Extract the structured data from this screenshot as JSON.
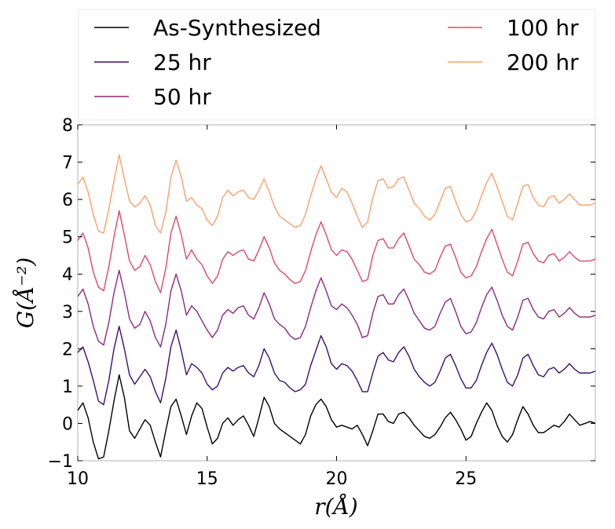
{
  "chart_data": {
    "type": "line",
    "title": "",
    "xlabel": "r(Å)",
    "ylabel": "G(Å⁻²)",
    "xlim": [
      10,
      30
    ],
    "ylim": [
      -1,
      8
    ],
    "xticks": [
      "10",
      "15",
      "20",
      "25"
    ],
    "yticks": [
      "−1",
      "0",
      "1",
      "2",
      "3",
      "4",
      "5",
      "6",
      "7",
      "8"
    ],
    "legend_position": "top",
    "grid": false,
    "x": [
      10.0,
      10.2,
      10.4,
      10.6,
      10.8,
      11.0,
      11.2,
      11.4,
      11.6,
      11.8,
      12.0,
      12.2,
      12.4,
      12.6,
      12.8,
      13.0,
      13.2,
      13.4,
      13.6,
      13.8,
      14.0,
      14.2,
      14.4,
      14.6,
      14.8,
      15.0,
      15.2,
      15.4,
      15.6,
      15.8,
      16.0,
      16.2,
      16.4,
      16.6,
      16.8,
      17.0,
      17.2,
      17.4,
      17.6,
      17.8,
      18.0,
      18.2,
      18.4,
      18.6,
      18.8,
      19.0,
      19.2,
      19.4,
      19.6,
      19.8,
      20.0,
      20.2,
      20.4,
      20.6,
      20.8,
      21.0,
      21.2,
      21.4,
      21.6,
      21.8,
      22.0,
      22.2,
      22.4,
      22.6,
      22.8,
      23.0,
      23.2,
      23.4,
      23.6,
      23.8,
      24.0,
      24.2,
      24.4,
      24.6,
      24.8,
      25.0,
      25.2,
      25.4,
      25.6,
      25.8,
      26.0,
      26.2,
      26.4,
      26.6,
      26.8,
      27.0,
      27.2,
      27.4,
      27.6,
      27.8,
      28.0,
      28.2,
      28.4,
      28.6,
      28.8,
      29.0,
      29.2,
      29.4,
      29.6,
      29.8,
      30.0
    ],
    "series": [
      {
        "name": "As-Synthesized",
        "color": "#000000",
        "values": [
          0.35,
          0.55,
          0.15,
          -0.5,
          -0.95,
          -0.9,
          -0.2,
          0.6,
          1.3,
          0.7,
          -0.2,
          -0.4,
          -0.15,
          0.1,
          -0.05,
          -0.5,
          -0.9,
          -0.2,
          0.45,
          0.65,
          0.2,
          -0.3,
          0.2,
          0.55,
          0.4,
          -0.1,
          -0.55,
          -0.4,
          0.0,
          0.15,
          -0.05,
          0.1,
          0.2,
          -0.05,
          -0.35,
          0.15,
          0.7,
          0.45,
          0.0,
          -0.15,
          -0.25,
          -0.35,
          -0.45,
          -0.55,
          -0.3,
          0.2,
          0.5,
          0.65,
          0.45,
          0.1,
          -0.1,
          -0.05,
          -0.1,
          -0.15,
          -0.05,
          -0.3,
          -0.6,
          -0.2,
          0.25,
          0.25,
          0.05,
          0.0,
          0.25,
          0.3,
          0.15,
          -0.05,
          -0.2,
          -0.35,
          -0.4,
          -0.3,
          -0.1,
          0.15,
          0.3,
          0.1,
          -0.15,
          -0.45,
          -0.35,
          0.0,
          0.3,
          0.55,
          0.35,
          -0.05,
          -0.35,
          -0.5,
          -0.3,
          0.1,
          0.45,
          0.25,
          -0.05,
          -0.25,
          -0.25,
          -0.15,
          -0.05,
          -0.1,
          0.05,
          0.25,
          0.1,
          -0.05,
          0.0,
          0.05,
          0.0
        ]
      },
      {
        "name": "25 hr",
        "color": "#3b0f70",
        "values": [
          1.9,
          2.05,
          1.65,
          1.15,
          0.6,
          0.5,
          1.15,
          2.0,
          2.6,
          2.0,
          1.3,
          1.05,
          1.25,
          1.45,
          1.25,
          0.85,
          0.55,
          1.2,
          2.05,
          2.5,
          1.95,
          1.3,
          1.6,
          1.5,
          1.35,
          1.05,
          0.9,
          1.0,
          1.35,
          1.5,
          1.4,
          1.5,
          1.55,
          1.35,
          1.25,
          1.55,
          2.0,
          1.75,
          1.35,
          1.15,
          1.1,
          0.95,
          0.85,
          0.9,
          1.05,
          1.55,
          1.95,
          2.35,
          2.05,
          1.6,
          1.45,
          1.6,
          1.55,
          1.4,
          1.15,
          0.85,
          0.85,
          1.35,
          1.8,
          1.9,
          1.7,
          1.65,
          1.9,
          2.05,
          1.8,
          1.45,
          1.25,
          1.1,
          1.0,
          1.1,
          1.4,
          1.75,
          1.85,
          1.55,
          1.2,
          0.95,
          0.95,
          1.15,
          1.55,
          1.9,
          2.15,
          1.85,
          1.45,
          1.1,
          1.0,
          1.3,
          1.75,
          1.85,
          1.55,
          1.3,
          1.25,
          1.45,
          1.5,
          1.35,
          1.45,
          1.6,
          1.45,
          1.35,
          1.35,
          1.35,
          1.4
        ]
      },
      {
        "name": "50 hr",
        "color": "#8c2981",
        "values": [
          3.4,
          3.6,
          3.2,
          2.6,
          2.2,
          2.1,
          2.7,
          3.5,
          4.1,
          3.5,
          2.8,
          2.55,
          2.65,
          3.0,
          2.75,
          2.3,
          2.05,
          2.65,
          3.55,
          4.0,
          3.55,
          2.9,
          3.15,
          3.0,
          2.75,
          2.5,
          2.3,
          2.5,
          2.9,
          3.05,
          2.95,
          3.1,
          3.15,
          2.9,
          2.8,
          3.1,
          3.5,
          3.2,
          2.8,
          2.65,
          2.55,
          2.35,
          2.25,
          2.3,
          2.6,
          3.1,
          3.55,
          3.9,
          3.55,
          3.15,
          3.05,
          3.2,
          3.1,
          2.9,
          2.65,
          2.3,
          2.35,
          2.95,
          3.4,
          3.45,
          3.2,
          3.2,
          3.45,
          3.6,
          3.3,
          2.95,
          2.75,
          2.55,
          2.5,
          2.6,
          2.95,
          3.25,
          3.35,
          3.0,
          2.6,
          2.4,
          2.45,
          2.7,
          3.1,
          3.45,
          3.65,
          3.3,
          2.9,
          2.6,
          2.5,
          2.85,
          3.3,
          3.35,
          3.05,
          2.85,
          2.8,
          3.0,
          3.05,
          2.85,
          2.95,
          3.1,
          2.95,
          2.85,
          2.85,
          2.85,
          2.9
        ]
      },
      {
        "name": "100 hr",
        "color": "#de4968",
        "values": [
          4.9,
          5.1,
          4.7,
          4.05,
          3.65,
          3.55,
          4.2,
          5.0,
          5.7,
          5.05,
          4.35,
          4.1,
          4.2,
          4.5,
          4.25,
          3.8,
          3.5,
          4.15,
          5.1,
          5.55,
          5.05,
          4.4,
          4.65,
          4.4,
          4.25,
          3.95,
          3.75,
          3.95,
          4.4,
          4.6,
          4.5,
          4.6,
          4.65,
          4.4,
          4.35,
          4.65,
          5.0,
          4.7,
          4.3,
          4.1,
          4.0,
          3.85,
          3.75,
          3.8,
          4.1,
          4.6,
          5.05,
          5.4,
          5.05,
          4.65,
          4.5,
          4.65,
          4.6,
          4.4,
          4.1,
          3.8,
          3.85,
          4.5,
          4.9,
          4.95,
          4.7,
          4.7,
          4.95,
          5.1,
          4.75,
          4.4,
          4.25,
          4.05,
          4.0,
          4.1,
          4.45,
          4.75,
          4.8,
          4.45,
          4.05,
          3.9,
          3.95,
          4.2,
          4.6,
          4.95,
          5.2,
          4.8,
          4.4,
          4.05,
          3.95,
          4.35,
          4.8,
          4.85,
          4.55,
          4.35,
          4.3,
          4.5,
          4.55,
          4.35,
          4.45,
          4.6,
          4.45,
          4.35,
          4.35,
          4.35,
          4.4
        ]
      },
      {
        "name": "200 hr",
        "color": "#fe9f6d",
        "values": [
          6.4,
          6.6,
          6.2,
          5.6,
          5.15,
          5.1,
          5.75,
          6.5,
          7.2,
          6.55,
          5.95,
          5.8,
          5.9,
          6.1,
          5.85,
          5.3,
          5.1,
          5.65,
          6.6,
          7.05,
          6.6,
          5.95,
          6.05,
          5.85,
          5.75,
          5.45,
          5.3,
          5.55,
          6.05,
          6.25,
          6.1,
          6.2,
          6.25,
          6.05,
          6.0,
          6.25,
          6.55,
          6.2,
          5.8,
          5.55,
          5.45,
          5.35,
          5.25,
          5.3,
          5.6,
          6.1,
          6.55,
          6.9,
          6.55,
          6.2,
          6.05,
          6.3,
          6.2,
          5.9,
          5.55,
          5.25,
          5.4,
          6.05,
          6.5,
          6.55,
          6.3,
          6.35,
          6.55,
          6.6,
          6.25,
          5.9,
          5.75,
          5.55,
          5.45,
          5.6,
          5.95,
          6.3,
          6.35,
          5.95,
          5.6,
          5.4,
          5.45,
          5.7,
          6.1,
          6.45,
          6.7,
          6.35,
          5.95,
          5.55,
          5.45,
          5.9,
          6.35,
          6.4,
          6.05,
          5.85,
          5.8,
          6.05,
          6.1,
          5.9,
          6.0,
          6.15,
          6.0,
          5.85,
          5.85,
          5.85,
          5.9
        ]
      }
    ]
  }
}
